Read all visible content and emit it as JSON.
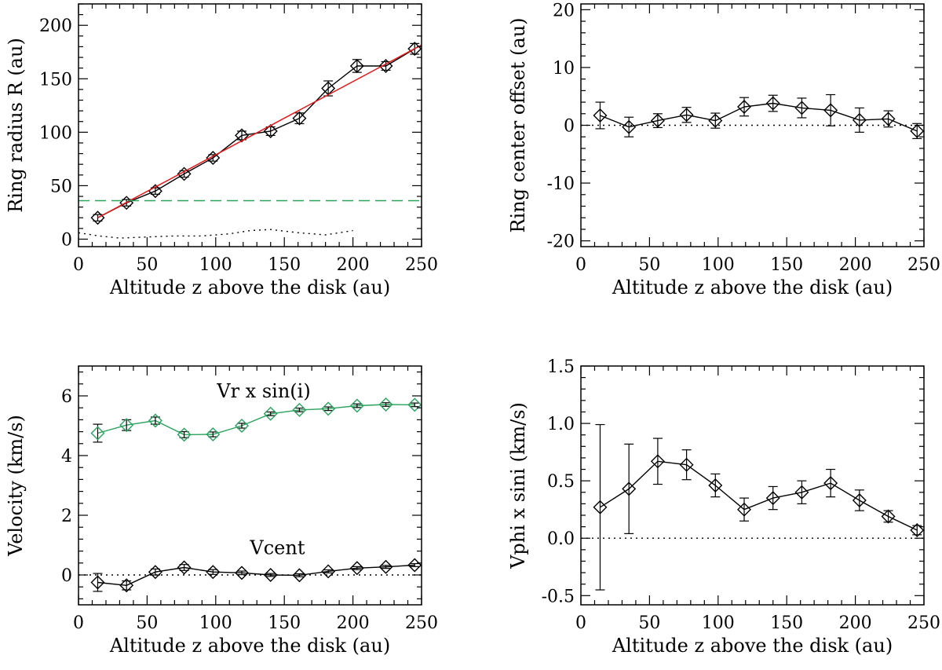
{
  "chart_data": [
    {
      "type": "line",
      "panel": "top-left",
      "xlabel": "Altitude z above the disk (au)",
      "ylabel": "Ring radius R (au)",
      "xlim": [
        0,
        250
      ],
      "ylim": [
        -7,
        220
      ],
      "xticks": [
        0,
        50,
        100,
        150,
        200,
        250
      ],
      "yticks": [
        0,
        50,
        100,
        150,
        200
      ],
      "series": [
        {
          "name": "Ring radius",
          "color": "#000000",
          "marker": "diamond",
          "x": [
            14,
            35,
            56,
            77,
            98,
            119,
            140,
            161,
            182,
            203,
            224,
            245
          ],
          "y": [
            20,
            34,
            45,
            61,
            76,
            97,
            101,
            113,
            141,
            162,
            162,
            178
          ],
          "err": [
            3,
            3,
            3,
            3,
            3,
            4,
            4,
            5,
            7,
            6,
            4,
            5
          ]
        },
        {
          "name": "Linear fit",
          "color": "#e41a1c",
          "style": "solid",
          "x": [
            14,
            252
          ],
          "y": [
            20,
            183
          ]
        },
        {
          "name": "Threshold",
          "color": "#2ca25f",
          "style": "dashed",
          "x": [
            0,
            250
          ],
          "y": [
            36,
            36
          ]
        },
        {
          "name": "Baseline",
          "color": "#000000",
          "style": "dotted",
          "x": [
            0,
            15,
            30,
            50,
            70,
            90,
            110,
            125,
            140,
            160,
            180,
            200
          ],
          "y": [
            6,
            3,
            1,
            2,
            3,
            3,
            5,
            8,
            9,
            6,
            4,
            8
          ]
        }
      ]
    },
    {
      "type": "line",
      "panel": "top-right",
      "xlabel": "Altitude z above the disk (au)",
      "ylabel": "Ring center offset (au)",
      "xlim": [
        0,
        250
      ],
      "ylim": [
        -21,
        21
      ],
      "xticks": [
        0,
        50,
        100,
        150,
        200,
        250
      ],
      "yticks": [
        -20,
        -10,
        0,
        10,
        20
      ],
      "series": [
        {
          "name": "Ring center offset",
          "color": "#000000",
          "marker": "diamond",
          "x": [
            14,
            35,
            56,
            77,
            98,
            119,
            140,
            161,
            182,
            203,
            224,
            245
          ],
          "y": [
            1.7,
            -0.3,
            0.8,
            1.8,
            0.8,
            3.2,
            3.8,
            3.0,
            2.6,
            0.9,
            1.1,
            -1.0
          ],
          "err": [
            2.3,
            1.7,
            1.2,
            1.3,
            1.3,
            1.6,
            1.4,
            1.7,
            2.7,
            2.1,
            1.4,
            1.3
          ]
        },
        {
          "name": "Zero line",
          "color": "#000000",
          "style": "dotted",
          "x": [
            0,
            250
          ],
          "y": [
            0,
            0
          ]
        }
      ]
    },
    {
      "type": "line",
      "panel": "bottom-left",
      "xlabel": "Altitude z above the disk (au)",
      "ylabel": "Velocity (km/s)",
      "xlim": [
        0,
        250
      ],
      "ylim": [
        -1,
        7
      ],
      "xticks": [
        0,
        50,
        100,
        150,
        200,
        250
      ],
      "yticks": [
        0,
        2,
        4,
        6
      ],
      "annotations": [
        {
          "text": "Vr x sin(i)",
          "x": 135,
          "y": 5.95
        },
        {
          "text": "Vcent",
          "x": 145,
          "y": 0.7
        }
      ],
      "series": [
        {
          "name": "Vr x sin(i)",
          "color": "#2ca25f",
          "marker": "diamond",
          "x": [
            14,
            35,
            56,
            77,
            98,
            119,
            140,
            161,
            182,
            203,
            224,
            245
          ],
          "y": [
            4.75,
            5.02,
            5.17,
            4.7,
            4.71,
            5.0,
            5.4,
            5.53,
            5.57,
            5.67,
            5.71,
            5.7
          ],
          "err": [
            0.3,
            0.18,
            0.12,
            0.1,
            0.08,
            0.08,
            0.06,
            0.06,
            0.06,
            0.06,
            0.06,
            0.06
          ]
        },
        {
          "name": "Vcent",
          "color": "#000000",
          "marker": "diamond",
          "x": [
            14,
            35,
            56,
            77,
            98,
            119,
            140,
            161,
            182,
            203,
            224,
            245
          ],
          "y": [
            -0.25,
            -0.35,
            0.1,
            0.25,
            0.1,
            0.07,
            0.0,
            -0.01,
            0.12,
            0.23,
            0.27,
            0.33
          ],
          "err": [
            0.3,
            0.15,
            0.1,
            0.1,
            0.08,
            0.06,
            0.05,
            0.05,
            0.05,
            0.05,
            0.05,
            0.05
          ]
        },
        {
          "name": "Zero line",
          "color": "#000000",
          "style": "dotted",
          "x": [
            0,
            250
          ],
          "y": [
            0,
            0
          ]
        }
      ]
    },
    {
      "type": "line",
      "panel": "bottom-right",
      "xlabel": "Altitude z above the disk (au)",
      "ylabel": "Vphi x sini (km/s)",
      "xlim": [
        0,
        250
      ],
      "ylim": [
        -0.58,
        1.5
      ],
      "xticks": [
        0,
        50,
        100,
        150,
        200,
        250
      ],
      "yticks": [
        -0.5,
        0.0,
        0.5,
        1.0,
        1.5
      ],
      "series": [
        {
          "name": "Vphi x sini",
          "color": "#000000",
          "marker": "diamond",
          "x": [
            14,
            35,
            56,
            77,
            98,
            119,
            140,
            161,
            182,
            203,
            224,
            245
          ],
          "y": [
            0.27,
            0.43,
            0.67,
            0.64,
            0.46,
            0.25,
            0.35,
            0.4,
            0.48,
            0.33,
            0.19,
            0.07
          ],
          "err": [
            0.72,
            0.39,
            0.2,
            0.13,
            0.1,
            0.1,
            0.1,
            0.1,
            0.12,
            0.09,
            0.05,
            0.04
          ]
        },
        {
          "name": "Zero line",
          "color": "#000000",
          "style": "dotted",
          "x": [
            0,
            250
          ],
          "y": [
            0,
            0
          ]
        }
      ]
    }
  ]
}
